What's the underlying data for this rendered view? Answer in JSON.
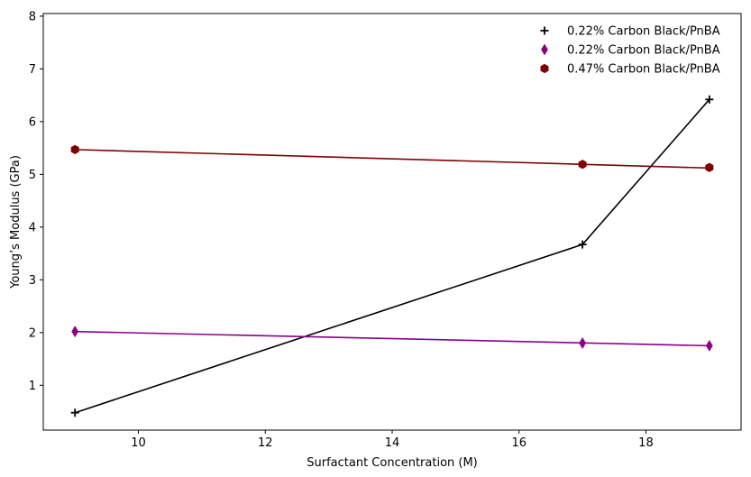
{
  "chart_data": {
    "type": "line",
    "title": "",
    "xlabel": "Surfactant Concentration (M)",
    "ylabel": "Young’s Modulus (GPa)",
    "xlim": [
      8.5,
      19.5
    ],
    "ylim": [
      0.15,
      8.05
    ],
    "xticks": [
      10,
      12,
      14,
      16,
      18
    ],
    "yticks": [
      1,
      2,
      3,
      4,
      5,
      6,
      7,
      8
    ],
    "grid": false,
    "legend_position": "top-right",
    "x": [
      9,
      17,
      19
    ],
    "series": [
      {
        "name": "0.22% Carbon Black/PnBA",
        "marker": "plus",
        "color": "#000000",
        "points": [
          [
            9,
            0.48
          ],
          [
            17,
            3.67
          ],
          [
            19,
            6.42
          ]
        ],
        "fit": "segments"
      },
      {
        "name": "0.22% Carbon Black/PnBA",
        "marker": "thin-diamond",
        "color": "#8B008B",
        "points": [
          [
            9,
            2.02
          ],
          [
            17,
            1.8
          ],
          [
            19,
            1.75
          ]
        ],
        "fit": [
          [
            9,
            2.02
          ],
          [
            19,
            1.75
          ]
        ]
      },
      {
        "name": "0.47% Carbon Black/PnBA",
        "marker": "hexagon",
        "color": "#800000",
        "points": [
          [
            9,
            5.47
          ],
          [
            17,
            5.19
          ],
          [
            19,
            5.13
          ]
        ],
        "fit": [
          [
            9,
            5.47
          ],
          [
            19,
            5.12
          ]
        ]
      }
    ]
  }
}
